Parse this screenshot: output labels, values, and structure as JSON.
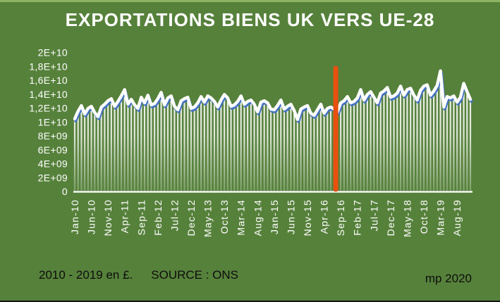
{
  "slide": {
    "title": "EXPORTATIONS BIENS UK VERS UE-28",
    "footer_left": "2010 - 2019 en £.",
    "footer_source": "SOURCE : ONS",
    "footer_right": "mp 2020"
  },
  "colors": {
    "background": "#56813B",
    "top_border": "#8CB464",
    "bottom_border": "#141414",
    "text_light": "#FFFFFF",
    "text_dark": "#0D0D0D",
    "line_white": "#FFFFFF",
    "line_blue": "#4472C4",
    "event_line": "#E8500F"
  },
  "chart_data": {
    "type": "line",
    "title": "EXPORTATIONS BIENS UK VERS UE-28",
    "unit": "£ (GBP)",
    "x_range": [
      "Jan-10",
      "Dec-19"
    ],
    "x_tick_interval_months": 5,
    "x_tick_labels": [
      "Jan-10",
      "Jun-10",
      "Nov-10",
      "Apr-11",
      "Sep-11",
      "Feb-12",
      "Jul-12",
      "Dec-12",
      "May-13",
      "Oct-13",
      "Mar-14",
      "Aug-14",
      "Jan-15",
      "Jun-15",
      "Nov-15",
      "Apr-16",
      "Sep-16",
      "Feb-17",
      "Jul-17",
      "Dec-17",
      "May-18",
      "Oct-18",
      "Mar-19",
      "Aug-19"
    ],
    "y_tick_labels": [
      "2E+10",
      "1,8E+10",
      "1,6E+10",
      "1,4E+10",
      "1,2E+10",
      "1E+10",
      "8E+09",
      "6E+09",
      "4E+09",
      "2E+09",
      "0"
    ],
    "ylim": [
      0,
      20000000000
    ],
    "grid": false,
    "legend": false,
    "values_e9": [
      10.5,
      11.6,
      12.4,
      11.2,
      12.0,
      12.3,
      11.4,
      10.8,
      12.2,
      12.6,
      13.1,
      13.4,
      12.3,
      13.0,
      13.8,
      14.7,
      12.6,
      13.3,
      12.5,
      12.0,
      13.6,
      12.8,
      13.9,
      12.5,
      12.7,
      13.4,
      14.3,
      12.5,
      13.5,
      13.8,
      12.3,
      11.8,
      13.1,
      13.4,
      13.6,
      12.0,
      12.2,
      12.8,
      13.7,
      12.9,
      13.8,
      13.5,
      13.0,
      12.2,
      13.2,
      14.0,
      13.5,
      12.3,
      12.5,
      13.0,
      13.8,
      12.6,
      13.0,
      13.2,
      12.6,
      11.5,
      12.9,
      13.1,
      12.8,
      11.9,
      11.8,
      12.4,
      13.2,
      11.9,
      12.3,
      12.6,
      11.7,
      10.4,
      11.9,
      12.2,
      12.4,
      11.3,
      11.0,
      11.8,
      12.6,
      11.3,
      12.0,
      12.2,
      11.9,
      11.5,
      12.8,
      13.1,
      13.7,
      12.8,
      13.0,
      13.5,
      14.7,
      13.2,
      14.0,
      14.4,
      13.6,
      12.8,
      14.2,
      14.5,
      15.0,
      13.6,
      13.8,
      14.2,
      15.2,
      13.9,
      14.7,
      14.9,
      13.9,
      13.2,
      14.6,
      15.2,
      15.4,
      13.9,
      14.5,
      15.3,
      17.4,
      12.2,
      13.7,
      13.5,
      13.8,
      12.9,
      13.6,
      15.6,
      14.4,
      13.3
    ],
    "event_line": {
      "month_index": 78.5,
      "color": "#E8500F"
    }
  }
}
